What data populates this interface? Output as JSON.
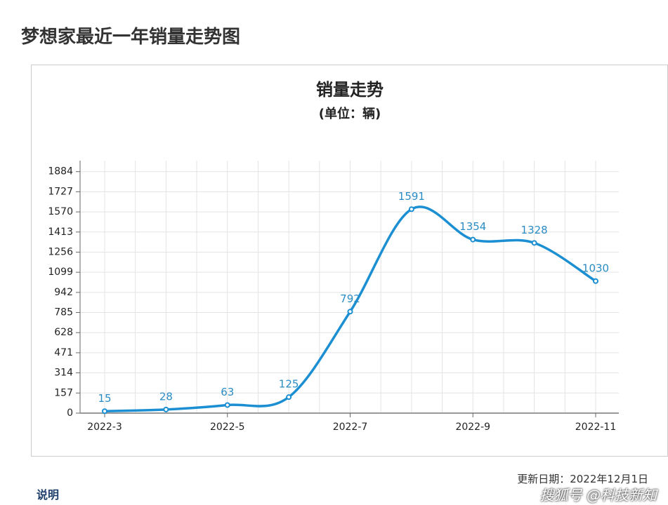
{
  "page_title": "梦想家最近一年销量走势图",
  "chart_data": {
    "type": "line",
    "title": "销量走势",
    "subtitle": "(单位：辆)",
    "categories": [
      "2022-3",
      null,
      "2022-5",
      null,
      "2022-7",
      null,
      "2022-9",
      null,
      "2022-11"
    ],
    "series": [
      {
        "name": "销量",
        "color": "#1b8fd1",
        "values": [
          15,
          28,
          63,
          125,
          792,
          1591,
          1354,
          1328,
          1030
        ]
      }
    ],
    "ylim": [
      0,
      1970
    ],
    "yticks": [
      0,
      157,
      314,
      471,
      628,
      785,
      942,
      1099,
      1256,
      1413,
      1570,
      1727,
      1884
    ],
    "grid": true
  },
  "update_date": "更新日期：2022年12月1日",
  "note": "说明",
  "watermark": "搜狐号 @科技新知"
}
